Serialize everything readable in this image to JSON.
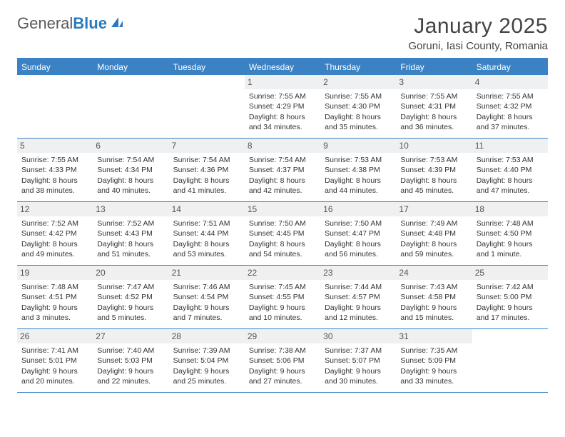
{
  "logo": {
    "text1": "General",
    "text2": "Blue"
  },
  "title": "January 2025",
  "location": "Goruni, Iasi County, Romania",
  "colors": {
    "header_bg": "#3b82c4",
    "header_text": "#ffffff",
    "daynum_bg": "#eef0f2",
    "border": "#3b82c4",
    "body_text": "#333333"
  },
  "day_names": [
    "Sunday",
    "Monday",
    "Tuesday",
    "Wednesday",
    "Thursday",
    "Friday",
    "Saturday"
  ],
  "weeks": [
    [
      {
        "empty": true
      },
      {
        "empty": true
      },
      {
        "empty": true
      },
      {
        "n": "1",
        "sr": "Sunrise: 7:55 AM",
        "ss": "Sunset: 4:29 PM",
        "d1": "Daylight: 8 hours",
        "d2": "and 34 minutes."
      },
      {
        "n": "2",
        "sr": "Sunrise: 7:55 AM",
        "ss": "Sunset: 4:30 PM",
        "d1": "Daylight: 8 hours",
        "d2": "and 35 minutes."
      },
      {
        "n": "3",
        "sr": "Sunrise: 7:55 AM",
        "ss": "Sunset: 4:31 PM",
        "d1": "Daylight: 8 hours",
        "d2": "and 36 minutes."
      },
      {
        "n": "4",
        "sr": "Sunrise: 7:55 AM",
        "ss": "Sunset: 4:32 PM",
        "d1": "Daylight: 8 hours",
        "d2": "and 37 minutes."
      }
    ],
    [
      {
        "n": "5",
        "sr": "Sunrise: 7:55 AM",
        "ss": "Sunset: 4:33 PM",
        "d1": "Daylight: 8 hours",
        "d2": "and 38 minutes."
      },
      {
        "n": "6",
        "sr": "Sunrise: 7:54 AM",
        "ss": "Sunset: 4:34 PM",
        "d1": "Daylight: 8 hours",
        "d2": "and 40 minutes."
      },
      {
        "n": "7",
        "sr": "Sunrise: 7:54 AM",
        "ss": "Sunset: 4:36 PM",
        "d1": "Daylight: 8 hours",
        "d2": "and 41 minutes."
      },
      {
        "n": "8",
        "sr": "Sunrise: 7:54 AM",
        "ss": "Sunset: 4:37 PM",
        "d1": "Daylight: 8 hours",
        "d2": "and 42 minutes."
      },
      {
        "n": "9",
        "sr": "Sunrise: 7:53 AM",
        "ss": "Sunset: 4:38 PM",
        "d1": "Daylight: 8 hours",
        "d2": "and 44 minutes."
      },
      {
        "n": "10",
        "sr": "Sunrise: 7:53 AM",
        "ss": "Sunset: 4:39 PM",
        "d1": "Daylight: 8 hours",
        "d2": "and 45 minutes."
      },
      {
        "n": "11",
        "sr": "Sunrise: 7:53 AM",
        "ss": "Sunset: 4:40 PM",
        "d1": "Daylight: 8 hours",
        "d2": "and 47 minutes."
      }
    ],
    [
      {
        "n": "12",
        "sr": "Sunrise: 7:52 AM",
        "ss": "Sunset: 4:42 PM",
        "d1": "Daylight: 8 hours",
        "d2": "and 49 minutes."
      },
      {
        "n": "13",
        "sr": "Sunrise: 7:52 AM",
        "ss": "Sunset: 4:43 PM",
        "d1": "Daylight: 8 hours",
        "d2": "and 51 minutes."
      },
      {
        "n": "14",
        "sr": "Sunrise: 7:51 AM",
        "ss": "Sunset: 4:44 PM",
        "d1": "Daylight: 8 hours",
        "d2": "and 53 minutes."
      },
      {
        "n": "15",
        "sr": "Sunrise: 7:50 AM",
        "ss": "Sunset: 4:45 PM",
        "d1": "Daylight: 8 hours",
        "d2": "and 54 minutes."
      },
      {
        "n": "16",
        "sr": "Sunrise: 7:50 AM",
        "ss": "Sunset: 4:47 PM",
        "d1": "Daylight: 8 hours",
        "d2": "and 56 minutes."
      },
      {
        "n": "17",
        "sr": "Sunrise: 7:49 AM",
        "ss": "Sunset: 4:48 PM",
        "d1": "Daylight: 8 hours",
        "d2": "and 59 minutes."
      },
      {
        "n": "18",
        "sr": "Sunrise: 7:48 AM",
        "ss": "Sunset: 4:50 PM",
        "d1": "Daylight: 9 hours",
        "d2": "and 1 minute."
      }
    ],
    [
      {
        "n": "19",
        "sr": "Sunrise: 7:48 AM",
        "ss": "Sunset: 4:51 PM",
        "d1": "Daylight: 9 hours",
        "d2": "and 3 minutes."
      },
      {
        "n": "20",
        "sr": "Sunrise: 7:47 AM",
        "ss": "Sunset: 4:52 PM",
        "d1": "Daylight: 9 hours",
        "d2": "and 5 minutes."
      },
      {
        "n": "21",
        "sr": "Sunrise: 7:46 AM",
        "ss": "Sunset: 4:54 PM",
        "d1": "Daylight: 9 hours",
        "d2": "and 7 minutes."
      },
      {
        "n": "22",
        "sr": "Sunrise: 7:45 AM",
        "ss": "Sunset: 4:55 PM",
        "d1": "Daylight: 9 hours",
        "d2": "and 10 minutes."
      },
      {
        "n": "23",
        "sr": "Sunrise: 7:44 AM",
        "ss": "Sunset: 4:57 PM",
        "d1": "Daylight: 9 hours",
        "d2": "and 12 minutes."
      },
      {
        "n": "24",
        "sr": "Sunrise: 7:43 AM",
        "ss": "Sunset: 4:58 PM",
        "d1": "Daylight: 9 hours",
        "d2": "and 15 minutes."
      },
      {
        "n": "25",
        "sr": "Sunrise: 7:42 AM",
        "ss": "Sunset: 5:00 PM",
        "d1": "Daylight: 9 hours",
        "d2": "and 17 minutes."
      }
    ],
    [
      {
        "n": "26",
        "sr": "Sunrise: 7:41 AM",
        "ss": "Sunset: 5:01 PM",
        "d1": "Daylight: 9 hours",
        "d2": "and 20 minutes."
      },
      {
        "n": "27",
        "sr": "Sunrise: 7:40 AM",
        "ss": "Sunset: 5:03 PM",
        "d1": "Daylight: 9 hours",
        "d2": "and 22 minutes."
      },
      {
        "n": "28",
        "sr": "Sunrise: 7:39 AM",
        "ss": "Sunset: 5:04 PM",
        "d1": "Daylight: 9 hours",
        "d2": "and 25 minutes."
      },
      {
        "n": "29",
        "sr": "Sunrise: 7:38 AM",
        "ss": "Sunset: 5:06 PM",
        "d1": "Daylight: 9 hours",
        "d2": "and 27 minutes."
      },
      {
        "n": "30",
        "sr": "Sunrise: 7:37 AM",
        "ss": "Sunset: 5:07 PM",
        "d1": "Daylight: 9 hours",
        "d2": "and 30 minutes."
      },
      {
        "n": "31",
        "sr": "Sunrise: 7:35 AM",
        "ss": "Sunset: 5:09 PM",
        "d1": "Daylight: 9 hours",
        "d2": "and 33 minutes."
      },
      {
        "empty": true
      }
    ]
  ]
}
